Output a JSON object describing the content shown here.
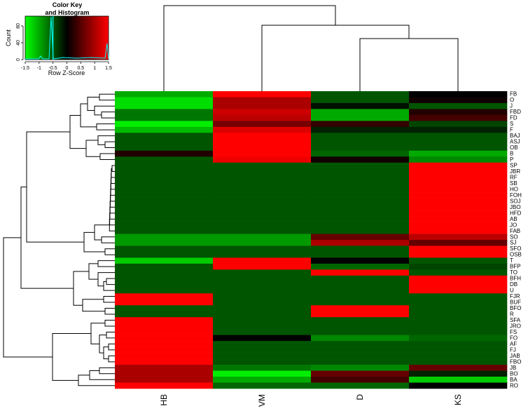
{
  "chart_data": {
    "type": "heatmap",
    "color_key": {
      "title_line1": "Color Key",
      "title_line2": "and Histogram",
      "xlabel": "Row Z-Score",
      "ylabel": "Count",
      "x_ticks": [
        "-1.5",
        "-1",
        "-0.5",
        "0",
        "0.5",
        "1",
        "1.5"
      ],
      "y_ticks": [
        "0",
        "40",
        "80"
      ],
      "range": [
        -1.5,
        1.5
      ],
      "colors": [
        "#00ff00",
        "#000000",
        "#ff0000"
      ],
      "histogram_color": "#00ffff"
    },
    "columns": [
      "HB",
      "VM",
      "D",
      "KS"
    ],
    "rows": [
      "FB",
      "O",
      "J",
      "FBD",
      "FD",
      "S",
      "F",
      "BAJ",
      "ASJ",
      "OB",
      "B",
      "P",
      "SP",
      "JBR",
      "RF",
      "SB",
      "HO",
      "FOH",
      "SOJ",
      "JBO",
      "HFD",
      "AB",
      "JO",
      "FAB",
      "SO",
      "SJ",
      "SFO",
      "OSB",
      "T",
      "BFP",
      "TO",
      "BFH",
      "DB",
      "U",
      "FJR",
      "BUF",
      "BFO",
      "R",
      "SFA",
      "JRO",
      "FS",
      "FO",
      "AF",
      "FJ",
      "JAB",
      "FBO",
      "JB",
      "BO",
      "BA",
      "RO"
    ],
    "values": [
      [
        -1.0,
        1.5,
        -0.5,
        0.0
      ],
      [
        -1.3,
        1.0,
        -0.5,
        0.1
      ],
      [
        -1.3,
        1.0,
        -0.1,
        -0.5
      ],
      [
        -0.7,
        1.2,
        -1.0,
        0.2
      ],
      [
        -0.7,
        1.1,
        -1.0,
        0.4
      ],
      [
        -1.4,
        0.7,
        0.3,
        -0.4
      ],
      [
        -1.1,
        1.3,
        -0.2,
        -0.2
      ],
      [
        -0.5,
        1.5,
        -0.5,
        -0.5
      ],
      [
        -0.5,
        1.5,
        -0.5,
        -0.5
      ],
      [
        -0.5,
        1.5,
        -0.5,
        -0.5
      ],
      [
        0.2,
        1.5,
        -0.6,
        -1.0
      ],
      [
        -0.5,
        1.4,
        0.1,
        -0.8
      ],
      [
        -0.5,
        -0.5,
        -0.5,
        1.5
      ],
      [
        -0.5,
        -0.5,
        -0.5,
        1.5
      ],
      [
        -0.5,
        -0.5,
        -0.5,
        1.5
      ],
      [
        -0.5,
        -0.5,
        -0.5,
        1.5
      ],
      [
        -0.5,
        -0.5,
        -0.5,
        1.5
      ],
      [
        -0.5,
        -0.5,
        -0.5,
        1.5
      ],
      [
        -0.5,
        -0.5,
        -0.5,
        1.5
      ],
      [
        -0.5,
        -0.5,
        -0.5,
        1.5
      ],
      [
        -0.5,
        -0.5,
        -0.5,
        1.5
      ],
      [
        -0.5,
        -0.5,
        -0.5,
        1.5
      ],
      [
        -0.5,
        -0.5,
        -0.5,
        1.5
      ],
      [
        -0.5,
        -0.5,
        -0.5,
        1.5
      ],
      [
        -0.9,
        -0.9,
        0.6,
        1.1
      ],
      [
        -0.9,
        -0.9,
        1.0,
        0.6
      ],
      [
        -0.5,
        -0.5,
        -0.5,
        1.5
      ],
      [
        -0.5,
        -0.5,
        -0.5,
        1.5
      ],
      [
        -1.2,
        1.5,
        0.0,
        -0.5
      ],
      [
        -0.5,
        1.5,
        -0.6,
        -0.4
      ],
      [
        -0.5,
        -0.5,
        1.5,
        -0.5
      ],
      [
        -0.5,
        -0.5,
        -0.5,
        1.5
      ],
      [
        -0.5,
        -0.5,
        -0.5,
        1.5
      ],
      [
        -0.5,
        -0.5,
        -0.5,
        1.5
      ],
      [
        1.5,
        -0.5,
        -0.5,
        -0.5
      ],
      [
        1.5,
        -0.5,
        -0.5,
        -0.5
      ],
      [
        -0.5,
        -0.5,
        1.5,
        -0.5
      ],
      [
        -0.5,
        -0.5,
        1.5,
        -0.5
      ],
      [
        1.5,
        -0.5,
        -0.5,
        -0.5
      ],
      [
        1.5,
        -0.5,
        -0.5,
        -0.5
      ],
      [
        1.5,
        -0.5,
        -0.5,
        -0.5
      ],
      [
        1.5,
        0.0,
        -0.8,
        -0.6
      ],
      [
        1.5,
        -0.5,
        -0.5,
        -0.5
      ],
      [
        1.5,
        -0.5,
        -0.5,
        -0.5
      ],
      [
        1.5,
        -0.5,
        -0.5,
        -0.5
      ],
      [
        1.5,
        -0.5,
        -0.5,
        -0.5
      ],
      [
        1.0,
        -0.7,
        -0.8,
        0.6
      ],
      [
        1.0,
        -1.4,
        0.6,
        -0.2
      ],
      [
        1.0,
        -1.0,
        0.4,
        -1.2
      ],
      [
        1.5,
        -0.6,
        -0.6,
        0.0
      ]
    ],
    "col_dendrogram": {
      "order": [
        "HB",
        "VM",
        "D",
        "KS"
      ],
      "merges": [
        [
          "D",
          "KS",
          0.35
        ],
        [
          "VM",
          "D+KS",
          0.55
        ],
        [
          "HB",
          "VM+D+KS",
          1.0
        ]
      ]
    }
  }
}
